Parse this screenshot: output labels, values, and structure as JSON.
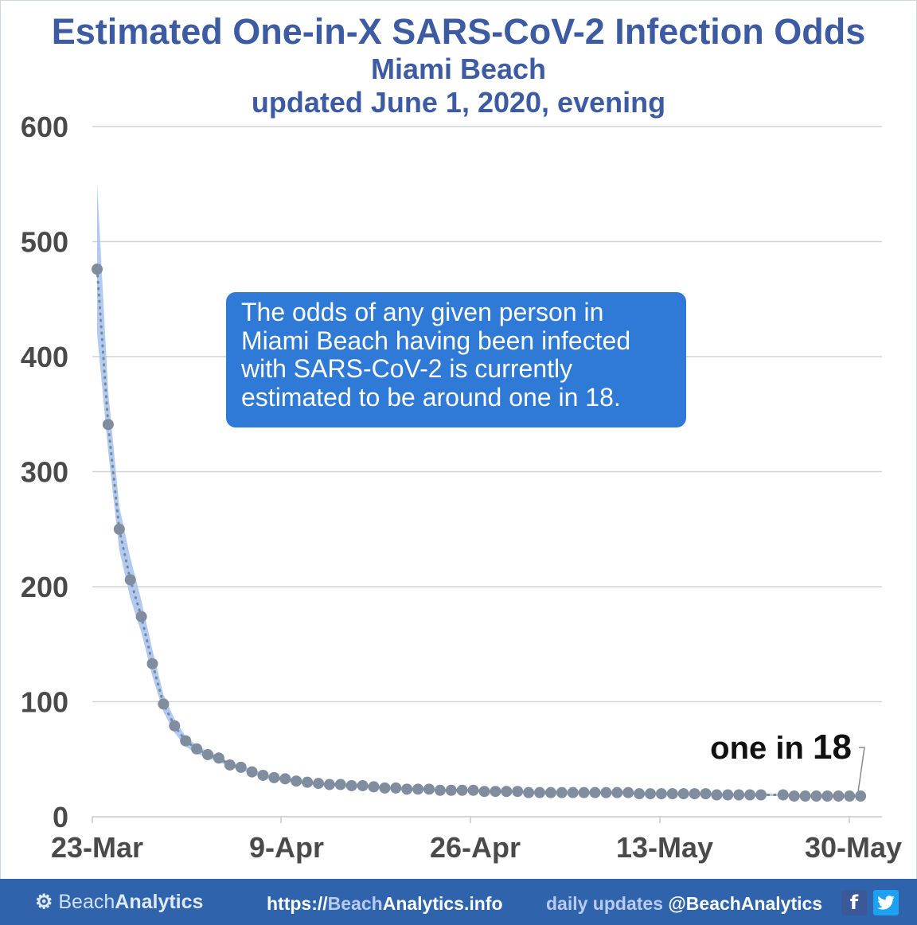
{
  "header": {
    "title": "Estimated One-in-X SARS-CoV-2 Infection Odds",
    "subtitle": "Miami Beach",
    "updated": "updated June 1, 2020, evening"
  },
  "callout": {
    "lines": [
      "The odds of any given person in",
      "Miami Beach having been infected",
      "with SARS-CoV-2 is currently",
      "estimated to be around one in 18."
    ]
  },
  "chart_data": {
    "type": "scatter",
    "title": "Estimated One-in-X SARS-CoV-2 Infection Odds",
    "xlabel": "",
    "ylabel": "",
    "ylim": [
      0,
      600
    ],
    "yticks": [
      0,
      100,
      200,
      300,
      400,
      500,
      600
    ],
    "x_tick_labels": [
      "23-Mar",
      "9-Apr",
      "26-Apr",
      "13-May",
      "30-May"
    ],
    "x_start": "2020-03-23",
    "x_end": "2020-05-31",
    "grid": true,
    "annotation": {
      "prefix": "one in ",
      "value": "18",
      "date": "2020-05-31"
    },
    "series": [
      {
        "dates": [
          "2020-03-23",
          "2020-03-24",
          "2020-03-25",
          "2020-03-26",
          "2020-03-27",
          "2020-03-28",
          "2020-03-29",
          "2020-03-30",
          "2020-03-31",
          "2020-04-01",
          "2020-04-02",
          "2020-04-03",
          "2020-04-04",
          "2020-04-05",
          "2020-04-06",
          "2020-04-07",
          "2020-04-08",
          "2020-04-09",
          "2020-04-10",
          "2020-04-11",
          "2020-04-12",
          "2020-04-13",
          "2020-04-14",
          "2020-04-15",
          "2020-04-16",
          "2020-04-17",
          "2020-04-18",
          "2020-04-19",
          "2020-04-20",
          "2020-04-21",
          "2020-04-22",
          "2020-04-23",
          "2020-04-24",
          "2020-04-25",
          "2020-04-26",
          "2020-04-27",
          "2020-04-28",
          "2020-04-29",
          "2020-04-30",
          "2020-05-01",
          "2020-05-02",
          "2020-05-03",
          "2020-05-04",
          "2020-05-05",
          "2020-05-06",
          "2020-05-07",
          "2020-05-08",
          "2020-05-09",
          "2020-05-10",
          "2020-05-11",
          "2020-05-12",
          "2020-05-13",
          "2020-05-14",
          "2020-05-15",
          "2020-05-16",
          "2020-05-17",
          "2020-05-18",
          "2020-05-19",
          "2020-05-20",
          "2020-05-21",
          "2020-05-22",
          "2020-05-24",
          "2020-05-25",
          "2020-05-26",
          "2020-05-27",
          "2020-05-28",
          "2020-05-29",
          "2020-05-30",
          "2020-05-31"
        ],
        "values": [
          476,
          341,
          250,
          206,
          174,
          133,
          98,
          79,
          66,
          59,
          54,
          51,
          45,
          43,
          39,
          36,
          34,
          33,
          31,
          30,
          29,
          28,
          28,
          27,
          27,
          26,
          25,
          25,
          24,
          24,
          24,
          23,
          23,
          23,
          23,
          22,
          22,
          22,
          22,
          21,
          21,
          21,
          21,
          21,
          21,
          21,
          21,
          21,
          21,
          20,
          20,
          20,
          20,
          20,
          20,
          20,
          19,
          19,
          19,
          19,
          19,
          19,
          18,
          18,
          18,
          18,
          18,
          18,
          18
        ],
        "band_upper": [
          550,
          370,
          270,
          225,
          188,
          145,
          106,
          85,
          70,
          62,
          57,
          53,
          47,
          45,
          41,
          38,
          35,
          34,
          32,
          31,
          30,
          29,
          29,
          28,
          28,
          27,
          26,
          26,
          25,
          25,
          25,
          24,
          24,
          24,
          24,
          23,
          23,
          23,
          23,
          22,
          22,
          22,
          22,
          22,
          22,
          22,
          22,
          22,
          22,
          21,
          21,
          21,
          21,
          21,
          21,
          21,
          20,
          20,
          20,
          20,
          20,
          20,
          19,
          19,
          19,
          19,
          19,
          19,
          19
        ],
        "band_lower": [
          420,
          318,
          232,
          190,
          160,
          122,
          91,
          73,
          61,
          55,
          51,
          48,
          43,
          41,
          37,
          34,
          32,
          31,
          29,
          28,
          27,
          27,
          26,
          26,
          25,
          25,
          24,
          24,
          23,
          23,
          23,
          22,
          22,
          22,
          22,
          21,
          21,
          21,
          21,
          20,
          20,
          20,
          20,
          20,
          20,
          20,
          20,
          20,
          20,
          19,
          19,
          19,
          19,
          19,
          19,
          19,
          18,
          18,
          18,
          18,
          18,
          18,
          17,
          17,
          17,
          17,
          17,
          17,
          17
        ]
      }
    ],
    "colors": {
      "band": "#a9c4ef",
      "points": "#7f8d9e",
      "dotted_line": "#7a8795",
      "grid": "#d4d4d4",
      "axis_text": "#4a4a4a"
    }
  },
  "footer": {
    "brand_light": "Beach",
    "brand_bold": "Analytics",
    "url_prefix": "https://",
    "url_light": "Beach",
    "url_rest": "Analytics.info",
    "daily_light": "daily updates ",
    "daily_handle": "@BeachAnalytics",
    "facebook_icon": "f",
    "twitter_icon": "t"
  }
}
